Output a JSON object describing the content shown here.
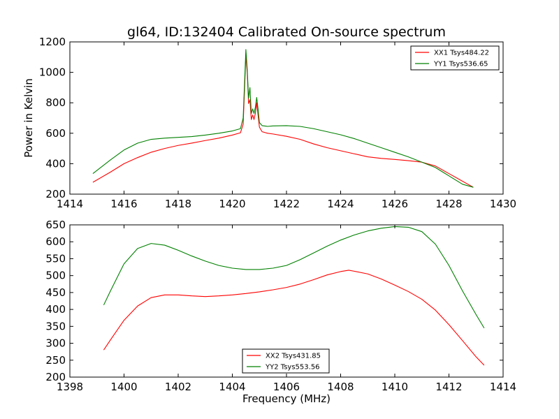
{
  "title": "gl64, ID:132404 Calibrated On-source spectrum",
  "chart_data": [
    {
      "type": "line",
      "ylabel": "Power in Kelvin",
      "xlabel": "",
      "xlim": [
        1414,
        1430
      ],
      "ylim": [
        200,
        1200
      ],
      "xticks": [
        1414,
        1416,
        1418,
        1420,
        1422,
        1424,
        1426,
        1428,
        1430
      ],
      "yticks": [
        200,
        400,
        600,
        800,
        1000,
        1200
      ],
      "legend": "top-right",
      "series": [
        {
          "name": "XX1 Tsys484.22",
          "color": "#ff0000",
          "x": [
            1414.85,
            1415.5,
            1416.0,
            1416.5,
            1417.0,
            1417.5,
            1418.0,
            1418.5,
            1419.0,
            1419.5,
            1420.0,
            1420.3,
            1420.4,
            1420.5,
            1420.55,
            1420.6,
            1420.65,
            1420.7,
            1420.75,
            1420.8,
            1420.85,
            1420.9,
            1420.95,
            1421.0,
            1421.1,
            1421.3,
            1421.5,
            1422.0,
            1422.5,
            1423.0,
            1423.5,
            1424.0,
            1424.5,
            1425.0,
            1425.5,
            1426.0,
            1426.5,
            1427.0,
            1427.5,
            1428.0,
            1428.5,
            1428.9
          ],
          "y": [
            278,
            345,
            400,
            440,
            475,
            500,
            520,
            535,
            552,
            568,
            588,
            603,
            660,
            1110,
            1000,
            795,
            820,
            690,
            720,
            690,
            730,
            800,
            720,
            640,
            610,
            600,
            595,
            580,
            560,
            530,
            505,
            485,
            465,
            445,
            435,
            428,
            420,
            410,
            385,
            335,
            285,
            245
          ]
        },
        {
          "name": "YY1 Tsys536.65",
          "color": "#008000",
          "x": [
            1414.85,
            1415.5,
            1416.0,
            1416.5,
            1417.0,
            1417.5,
            1418.0,
            1418.5,
            1419.0,
            1419.5,
            1420.0,
            1420.3,
            1420.4,
            1420.5,
            1420.55,
            1420.6,
            1420.65,
            1420.7,
            1420.75,
            1420.8,
            1420.85,
            1420.9,
            1420.95,
            1421.0,
            1421.1,
            1421.3,
            1421.5,
            1422.0,
            1422.5,
            1423.0,
            1423.5,
            1424.0,
            1424.5,
            1425.0,
            1425.5,
            1426.0,
            1426.5,
            1427.0,
            1427.5,
            1428.0,
            1428.5,
            1428.9
          ],
          "y": [
            335,
            425,
            490,
            535,
            560,
            568,
            573,
            578,
            588,
            600,
            615,
            630,
            700,
            1150,
            1020,
            830,
            900,
            730,
            760,
            730,
            770,
            835,
            760,
            670,
            650,
            645,
            648,
            650,
            645,
            630,
            610,
            590,
            565,
            535,
            505,
            475,
            445,
            410,
            375,
            320,
            265,
            245
          ]
        }
      ]
    },
    {
      "type": "line",
      "ylabel": "",
      "xlabel": "Frequency (MHz)",
      "xlim": [
        1398,
        1414
      ],
      "ylim": [
        200,
        650
      ],
      "xticks": [
        1398,
        1400,
        1402,
        1404,
        1406,
        1408,
        1410,
        1412,
        1414
      ],
      "yticks": [
        200,
        250,
        300,
        350,
        400,
        450,
        500,
        550,
        600,
        650
      ],
      "legend": "bottom-center",
      "series": [
        {
          "name": "XX2 Tsys431.85",
          "color": "#ff0000",
          "x": [
            1399.25,
            1399.5,
            1400.0,
            1400.5,
            1401.0,
            1401.5,
            1402.0,
            1402.5,
            1403.0,
            1403.5,
            1404.0,
            1404.5,
            1405.0,
            1405.5,
            1406.0,
            1406.5,
            1407.0,
            1407.5,
            1408.0,
            1408.3,
            1408.5,
            1409.0,
            1409.5,
            1410.0,
            1410.5,
            1411.0,
            1411.5,
            1412.0,
            1412.5,
            1413.0,
            1413.3
          ],
          "y": [
            280,
            310,
            368,
            410,
            435,
            443,
            443,
            440,
            438,
            440,
            443,
            447,
            452,
            458,
            465,
            475,
            488,
            502,
            512,
            516,
            513,
            505,
            490,
            472,
            453,
            430,
            398,
            355,
            308,
            260,
            235
          ]
        },
        {
          "name": "YY2 Tsys553.56",
          "color": "#008000",
          "x": [
            1399.25,
            1399.5,
            1400.0,
            1400.5,
            1401.0,
            1401.5,
            1402.0,
            1402.5,
            1403.0,
            1403.5,
            1404.0,
            1404.5,
            1405.0,
            1405.5,
            1406.0,
            1406.5,
            1407.0,
            1407.5,
            1408.0,
            1408.5,
            1409.0,
            1409.5,
            1410.0,
            1410.5,
            1411.0,
            1411.5,
            1412.0,
            1412.5,
            1413.0,
            1413.3
          ],
          "y": [
            413,
            455,
            535,
            580,
            595,
            590,
            575,
            558,
            543,
            530,
            522,
            518,
            518,
            522,
            530,
            547,
            567,
            587,
            605,
            620,
            632,
            640,
            645,
            643,
            630,
            593,
            530,
            455,
            385,
            345
          ]
        }
      ]
    }
  ]
}
